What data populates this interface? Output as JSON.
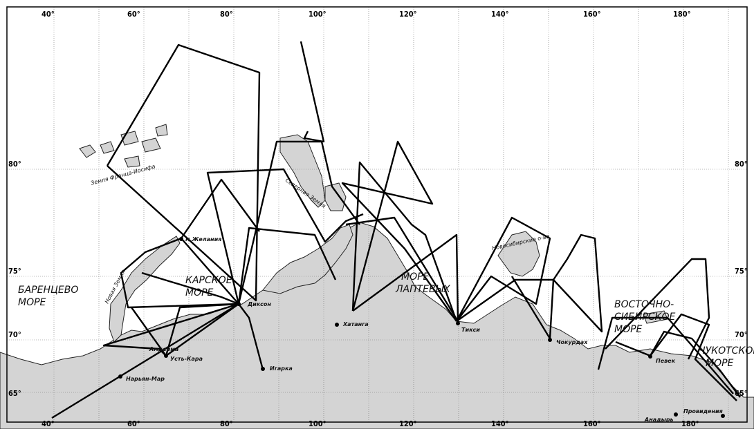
{
  "lon_labels": [
    "40°",
    "60°",
    "80°",
    "100°",
    "120°",
    "140°",
    "160°",
    "180°"
  ],
  "lat_labels": [
    "80°",
    "75°",
    "70°",
    "65°"
  ],
  "seas": [
    {
      "id": "barents",
      "lines": [
        "БАРЕНЦЕВО",
        "МОРЕ"
      ]
    },
    {
      "id": "kara",
      "lines": [
        "КАРСКОЕ",
        "МОРЕ"
      ]
    },
    {
      "id": "laptev",
      "lines": [
        "МОРЕ",
        "ЛАПТЕВЫХ"
      ]
    },
    {
      "id": "east-siberian",
      "lines": [
        "ВОСТОЧНО-",
        "СИБИРСКОЕ",
        "МОРЕ"
      ]
    },
    {
      "id": "chukchi",
      "lines": [
        "ЧУКОТСКОЕ",
        "МОРЕ"
      ]
    }
  ],
  "islands": {
    "franz_josef": "Земля Франца-Иосифа",
    "severnaya_zemlya": "Северная Земля",
    "novaya_zemlya": "Новая Земля",
    "novosibirsk": "Новосибирские о-ва"
  },
  "places": {
    "m_zhelaniya": "м.Желания",
    "dikson": "Диксон",
    "khatanga": "Хатанга",
    "tiksi": "Тикси",
    "chokurdakh": "Чокурдах",
    "pevek": "Певек",
    "amderma": "Амдерма",
    "ust_kara": "Усть-Кара",
    "naryan_mar": "Нарьян-Мар",
    "igarka": "Игарка",
    "anadyr": "Анадырь",
    "provideniya": "Провидения"
  }
}
